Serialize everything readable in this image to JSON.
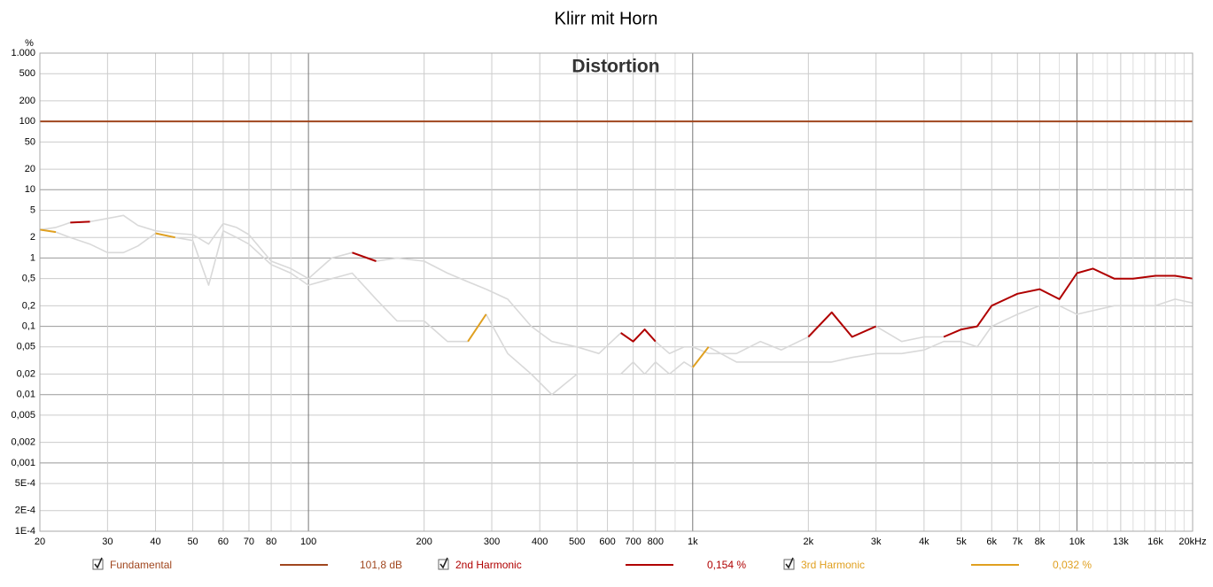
{
  "chart_data": {
    "type": "line",
    "title": "Klirr mit Horn",
    "annotation": "Distortion",
    "ylabel": "%",
    "log_x": true,
    "log_y": true,
    "grid": true,
    "xlim": [
      20,
      20000
    ],
    "ylim": [
      0.0001,
      1000
    ],
    "xticks": [
      20,
      30,
      40,
      50,
      60,
      70,
      80,
      100,
      200,
      300,
      400,
      500,
      600,
      700,
      800,
      {
        "value": 1000,
        "label": "1k"
      },
      {
        "value": 2000,
        "label": "2k"
      },
      {
        "value": 3000,
        "label": "3k"
      },
      {
        "value": 4000,
        "label": "4k"
      },
      {
        "value": 5000,
        "label": "5k"
      },
      {
        "value": 6000,
        "label": "6k"
      },
      {
        "value": 7000,
        "label": "7k"
      },
      {
        "value": 8000,
        "label": "8k"
      },
      {
        "value": 10000,
        "label": "10k"
      },
      {
        "value": 13000,
        "label": "13k"
      },
      {
        "value": 16000,
        "label": "16k"
      },
      {
        "value": 20000,
        "label": "20kHz"
      }
    ],
    "x_minor_grid": [
      90,
      900,
      9000,
      11000,
      12000,
      14000,
      15000,
      17000,
      18000,
      19000
    ],
    "yticks": [
      {
        "value": 1000,
        "label": "1.000"
      },
      500,
      200,
      100,
      50,
      20,
      10,
      5,
      2,
      1,
      {
        "value": 0.5,
        "label": "0,5"
      },
      {
        "value": 0.2,
        "label": "0,2"
      },
      {
        "value": 0.1,
        "label": "0,1"
      },
      {
        "value": 0.05,
        "label": "0,05"
      },
      {
        "value": 0.02,
        "label": "0,02"
      },
      {
        "value": 0.01,
        "label": "0,01"
      },
      {
        "value": 0.005,
        "label": "0,005"
      },
      {
        "value": 0.002,
        "label": "0,002"
      },
      {
        "value": 0.001,
        "label": "0,001"
      },
      {
        "value": 0.0005,
        "label": "5E-4"
      },
      {
        "value": 0.0002,
        "label": "2E-4"
      },
      {
        "value": 0.0001,
        "label": "1E-4"
      }
    ],
    "x": [
      20,
      22,
      24,
      27,
      30,
      33,
      36,
      40,
      45,
      50,
      55,
      60,
      65,
      70,
      80,
      90,
      100,
      115,
      130,
      150,
      170,
      200,
      230,
      260,
      290,
      330,
      380,
      430,
      500,
      570,
      650,
      700,
      750,
      800,
      870,
      950,
      1000,
      1100,
      1300,
      1500,
      1700,
      2000,
      2300,
      2600,
      3000,
      3500,
      4000,
      4500,
      5000,
      5500,
      6000,
      7000,
      8000,
      9000,
      10000,
      11000,
      12500,
      14000,
      16000,
      18000,
      20000
    ],
    "series": [
      {
        "color": "#d9d9d9",
        "values": [
          2.6,
          2.8,
          3.3,
          3.4,
          3.8,
          4.2,
          3,
          2.5,
          2.3,
          2.2,
          1.6,
          3.2,
          2.8,
          2.2,
          0.9,
          0.7,
          0.5,
          1,
          1.2,
          0.9,
          1,
          0.9,
          0.6,
          0.45,
          0.35,
          0.25,
          0.1,
          0.06,
          0.05,
          0.04,
          0.08,
          0.06,
          0.09,
          0.06,
          0.04,
          0.05,
          0.05,
          0.04,
          0.04,
          0.06,
          0.045,
          0.07,
          0.16,
          0.07,
          0.1,
          0.06,
          0.07,
          0.07,
          0.09,
          0.1,
          0.2,
          0.3,
          0.35,
          0.25,
          0.6,
          0.7,
          0.5,
          0.5,
          0.55,
          0.55,
          0.5
        ]
      },
      {
        "color": "#d9d9d9",
        "values": [
          2.6,
          2.4,
          2,
          1.6,
          1.2,
          1.2,
          1.5,
          2.3,
          2,
          1.8,
          0.4,
          2.5,
          2,
          1.6,
          0.8,
          0.6,
          0.4,
          0.5,
          0.6,
          0.25,
          0.12,
          0.12,
          0.06,
          0.06,
          0.15,
          0.04,
          0.02,
          0.01,
          0.02,
          0.02,
          0.02,
          0.03,
          0.02,
          0.03,
          0.02,
          0.03,
          0.025,
          0.05,
          0.03,
          0.03,
          0.03,
          0.03,
          0.03,
          0.035,
          0.04,
          0.04,
          0.045,
          0.06,
          0.06,
          0.05,
          0.1,
          0.15,
          0.2,
          0.2,
          0.15,
          0.17,
          0.2,
          0.2,
          0.2,
          0.25,
          0.22
        ]
      },
      {
        "name": "Fundamental",
        "legend_value": "101,8 dB",
        "color": "#a0461e",
        "x": [
          20,
          20000
        ],
        "values": [
          100,
          100
        ]
      },
      {
        "name": "2nd Harmonic",
        "legend_value": "0,154 %",
        "color": "#b00000",
        "values": [
          null,
          null,
          3.3,
          3.4,
          null,
          null,
          null,
          null,
          null,
          null,
          null,
          null,
          null,
          null,
          null,
          null,
          null,
          null,
          1.2,
          0.9,
          null,
          null,
          null,
          null,
          null,
          null,
          null,
          null,
          null,
          null,
          0.08,
          0.06,
          0.09,
          0.06,
          null,
          null,
          null,
          null,
          null,
          null,
          null,
          0.07,
          0.16,
          0.07,
          0.1,
          null,
          null,
          0.07,
          0.09,
          0.1,
          0.2,
          0.3,
          0.35,
          0.25,
          0.6,
          0.7,
          0.5,
          0.5,
          0.55,
          0.55,
          0.5
        ]
      },
      {
        "name": "3rd Harmonic",
        "legend_value": "0,032 %",
        "color": "#e0a020",
        "values": [
          2.6,
          2.4,
          null,
          null,
          null,
          null,
          null,
          2.3,
          2,
          null,
          null,
          null,
          null,
          null,
          null,
          null,
          null,
          null,
          null,
          null,
          null,
          null,
          null,
          0.06,
          0.15,
          null,
          null,
          null,
          null,
          null,
          null,
          null,
          null,
          null,
          null,
          null,
          0.025,
          0.05,
          null,
          null,
          null,
          null,
          null,
          null,
          null,
          null,
          null,
          null,
          null,
          null,
          null,
          null,
          null,
          null,
          null,
          null,
          null,
          null,
          null,
          null,
          null
        ]
      }
    ]
  }
}
